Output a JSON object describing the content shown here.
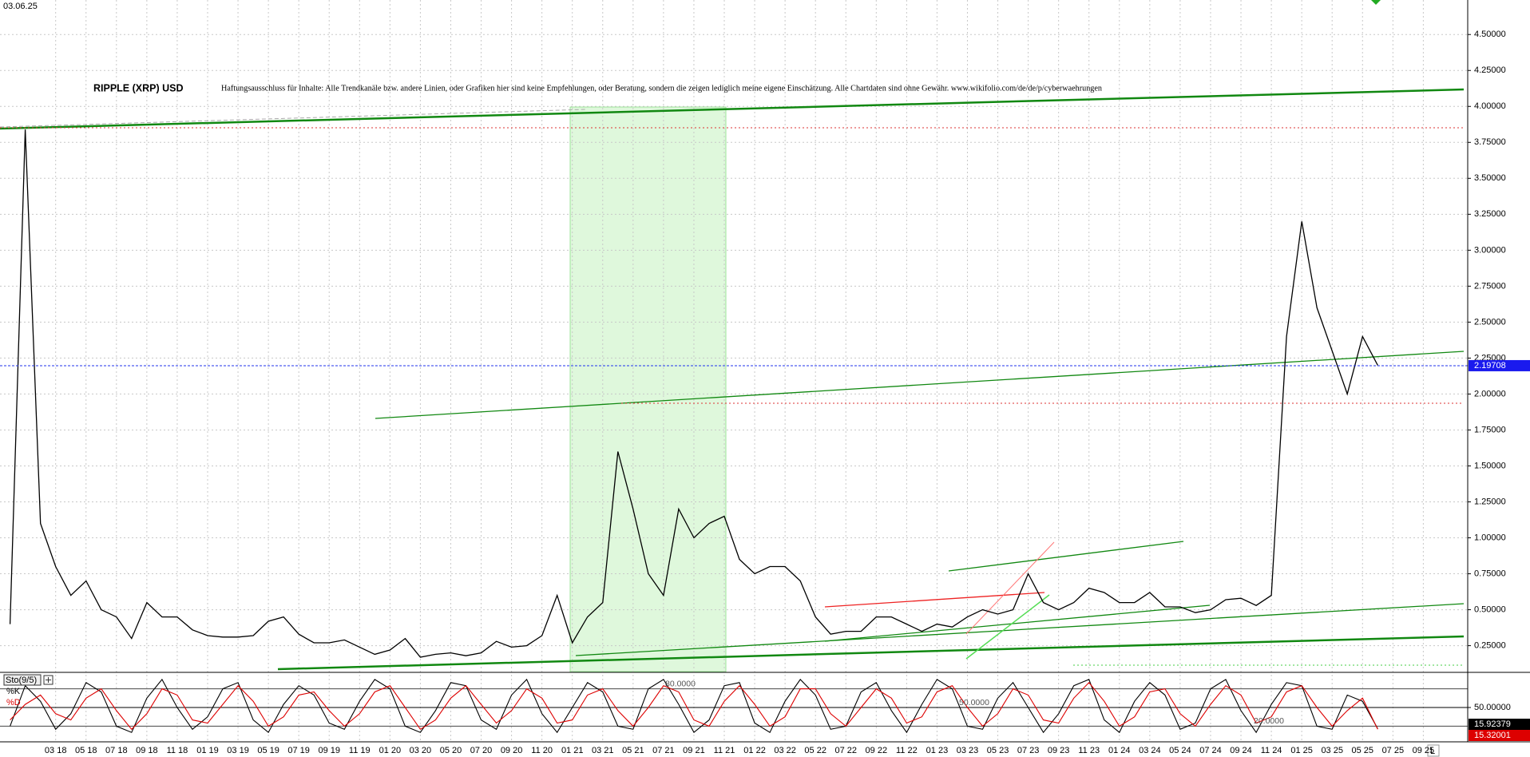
{
  "header": {
    "date": "03.06.25",
    "disclaimer": "Haftungsausschluss für Inhalte: Alle Trendkanäle bzw. andere Linien, oder Grafiken hier sind keine Empfehlungen, oder Beratung, sondern die zeigen lediglich meine eigene Einschätzung. Alle Chartdaten sind ohne Gewähr.  www.wikifolio.com/de/de/p/cyberwaehrungen",
    "corner_label": "L"
  },
  "chart_data": [
    {
      "type": "line",
      "title": "RIPPLE (XRP) USD",
      "color": "#000000",
      "categories": [
        null,
        null,
        null,
        "03 18",
        null,
        "05 18",
        null,
        "07 18",
        null,
        "09 18",
        null,
        "11 18",
        null,
        "01 19",
        null,
        "03 19",
        null,
        "05 19",
        null,
        "07 19",
        null,
        "09 19",
        null,
        "11 19",
        null,
        "01 20",
        null,
        "03 20",
        null,
        "05 20",
        null,
        "07 20",
        null,
        "09 20",
        null,
        "11 20",
        null,
        "01 21",
        null,
        "03 21",
        null,
        "05 21",
        null,
        "07 21",
        null,
        "09 21",
        null,
        "11 21",
        null,
        "01 22",
        null,
        "03 22",
        null,
        "05 22",
        null,
        "07 22",
        null,
        "09 22",
        null,
        "11 22",
        null,
        "01 23",
        null,
        "03 23",
        null,
        "05 23",
        null,
        "07 23",
        null,
        "09 23",
        null,
        "11 23",
        null,
        "01 24",
        null,
        "03 24",
        null,
        "05 24",
        null,
        "07 24",
        null,
        "09 24",
        null,
        "11 24",
        null,
        "01 25",
        null,
        "03 25",
        null,
        "05 25",
        null,
        "07 25",
        null,
        "09 25",
        null,
        null,
        null
      ],
      "values": [
        0.4,
        3.84,
        1.1,
        0.8,
        0.6,
        0.7,
        0.5,
        0.45,
        0.3,
        0.55,
        0.45,
        0.45,
        0.36,
        0.32,
        0.31,
        0.31,
        0.32,
        0.42,
        0.45,
        0.33,
        0.27,
        0.27,
        0.29,
        0.24,
        0.19,
        0.22,
        0.3,
        0.17,
        0.19,
        0.2,
        0.18,
        0.2,
        0.28,
        0.24,
        0.25,
        0.32,
        0.6,
        0.27,
        0.45,
        0.55,
        1.6,
        1.2,
        0.75,
        0.6,
        1.2,
        1.0,
        1.1,
        1.15,
        0.85,
        0.75,
        0.8,
        0.8,
        0.7,
        0.45,
        0.33,
        0.35,
        0.35,
        0.45,
        0.45,
        0.4,
        0.35,
        0.4,
        0.38,
        0.45,
        0.5,
        0.47,
        0.5,
        0.75,
        0.55,
        0.5,
        0.55,
        0.65,
        0.62,
        0.55,
        0.55,
        0.62,
        0.52,
        0.52,
        0.48,
        0.5,
        0.57,
        0.58,
        0.53,
        0.6,
        2.4,
        3.2,
        2.6,
        2.3,
        2.0,
        2.4,
        2.2,
        null,
        null,
        null,
        null,
        null,
        null
      ],
      "last_value": 2.19708,
      "ylim": [
        0.07,
        4.74
      ],
      "yticks": [
        {
          "value": 4.5,
          "label": "4.50000"
        },
        {
          "value": 4.25,
          "label": "4.25000"
        },
        {
          "value": 4,
          "label": "4.00000"
        },
        {
          "value": 3.75,
          "label": "3.75000"
        },
        {
          "value": 3.5,
          "label": "3.50000"
        },
        {
          "value": 3.25,
          "label": "3.25000"
        },
        {
          "value": 3,
          "label": "3.00000"
        },
        {
          "value": 2.75,
          "label": "2.75000"
        },
        {
          "value": 2.5,
          "label": "2.50000"
        },
        {
          "value": 2.25,
          "label": "2.25000"
        },
        {
          "value": 2,
          "label": "2.00000"
        },
        {
          "value": 1.75,
          "label": "1.75000"
        },
        {
          "value": 1.5,
          "label": "1.50000"
        },
        {
          "value": 1.25,
          "label": "1.25000"
        },
        {
          "value": 1,
          "label": "1.00000"
        },
        {
          "value": 0.75,
          "label": "0.75000"
        },
        {
          "value": 0.5,
          "label": "0.50000"
        },
        {
          "value": 0.25,
          "label": "0.25000"
        }
      ],
      "grid": true
    },
    {
      "type": "line",
      "title": "Sto(9/5)",
      "series": [
        {
          "name": "%K",
          "color": "#000000",
          "last_value": 15.92379,
          "values": [
            20,
            85,
            60,
            15,
            40,
            90,
            75,
            20,
            10,
            65,
            95,
            50,
            15,
            35,
            80,
            90,
            30,
            10,
            55,
            85,
            70,
            25,
            15,
            60,
            95,
            80,
            20,
            10,
            45,
            90,
            85,
            30,
            15,
            70,
            95,
            40,
            10,
            50,
            90,
            75,
            20,
            15,
            80,
            95,
            55,
            10,
            30,
            85,
            90,
            25,
            10,
            60,
            95,
            70,
            15,
            20,
            75,
            90,
            45,
            10,
            55,
            95,
            80,
            20,
            15,
            65,
            90,
            50,
            10,
            40,
            85,
            95,
            30,
            10,
            60,
            90,
            70,
            15,
            25,
            80,
            95,
            45,
            10,
            55,
            90,
            85,
            20,
            15,
            70,
            60,
            16,
            null,
            null,
            null,
            null,
            null,
            null
          ]
        },
        {
          "name": "%D",
          "color": "#dd0000",
          "last_value": 15.32001,
          "values": [
            30,
            55,
            70,
            40,
            30,
            65,
            80,
            45,
            15,
            40,
            80,
            70,
            30,
            25,
            55,
            85,
            60,
            20,
            35,
            70,
            75,
            45,
            20,
            40,
            75,
            85,
            50,
            15,
            30,
            65,
            85,
            55,
            25,
            45,
            80,
            65,
            25,
            30,
            70,
            80,
            45,
            20,
            50,
            85,
            75,
            30,
            20,
            60,
            85,
            55,
            20,
            35,
            80,
            80,
            40,
            20,
            50,
            80,
            65,
            25,
            35,
            75,
            85,
            50,
            20,
            40,
            80,
            70,
            30,
            25,
            65,
            90,
            60,
            20,
            35,
            75,
            80,
            40,
            20,
            55,
            85,
            70,
            25,
            35,
            75,
            85,
            50,
            20,
            45,
            65,
            15,
            null,
            null,
            null,
            null,
            null,
            null
          ]
        }
      ],
      "levels": [
        {
          "value": 80,
          "label": "80.0000"
        },
        {
          "value": 50,
          "label": "50.0000"
        },
        {
          "value": 20,
          "label": "20.0000"
        }
      ],
      "ylim": [
        0,
        100
      ],
      "yticks": [
        {
          "value": 50,
          "label": "50.00000"
        }
      ]
    }
  ]
}
